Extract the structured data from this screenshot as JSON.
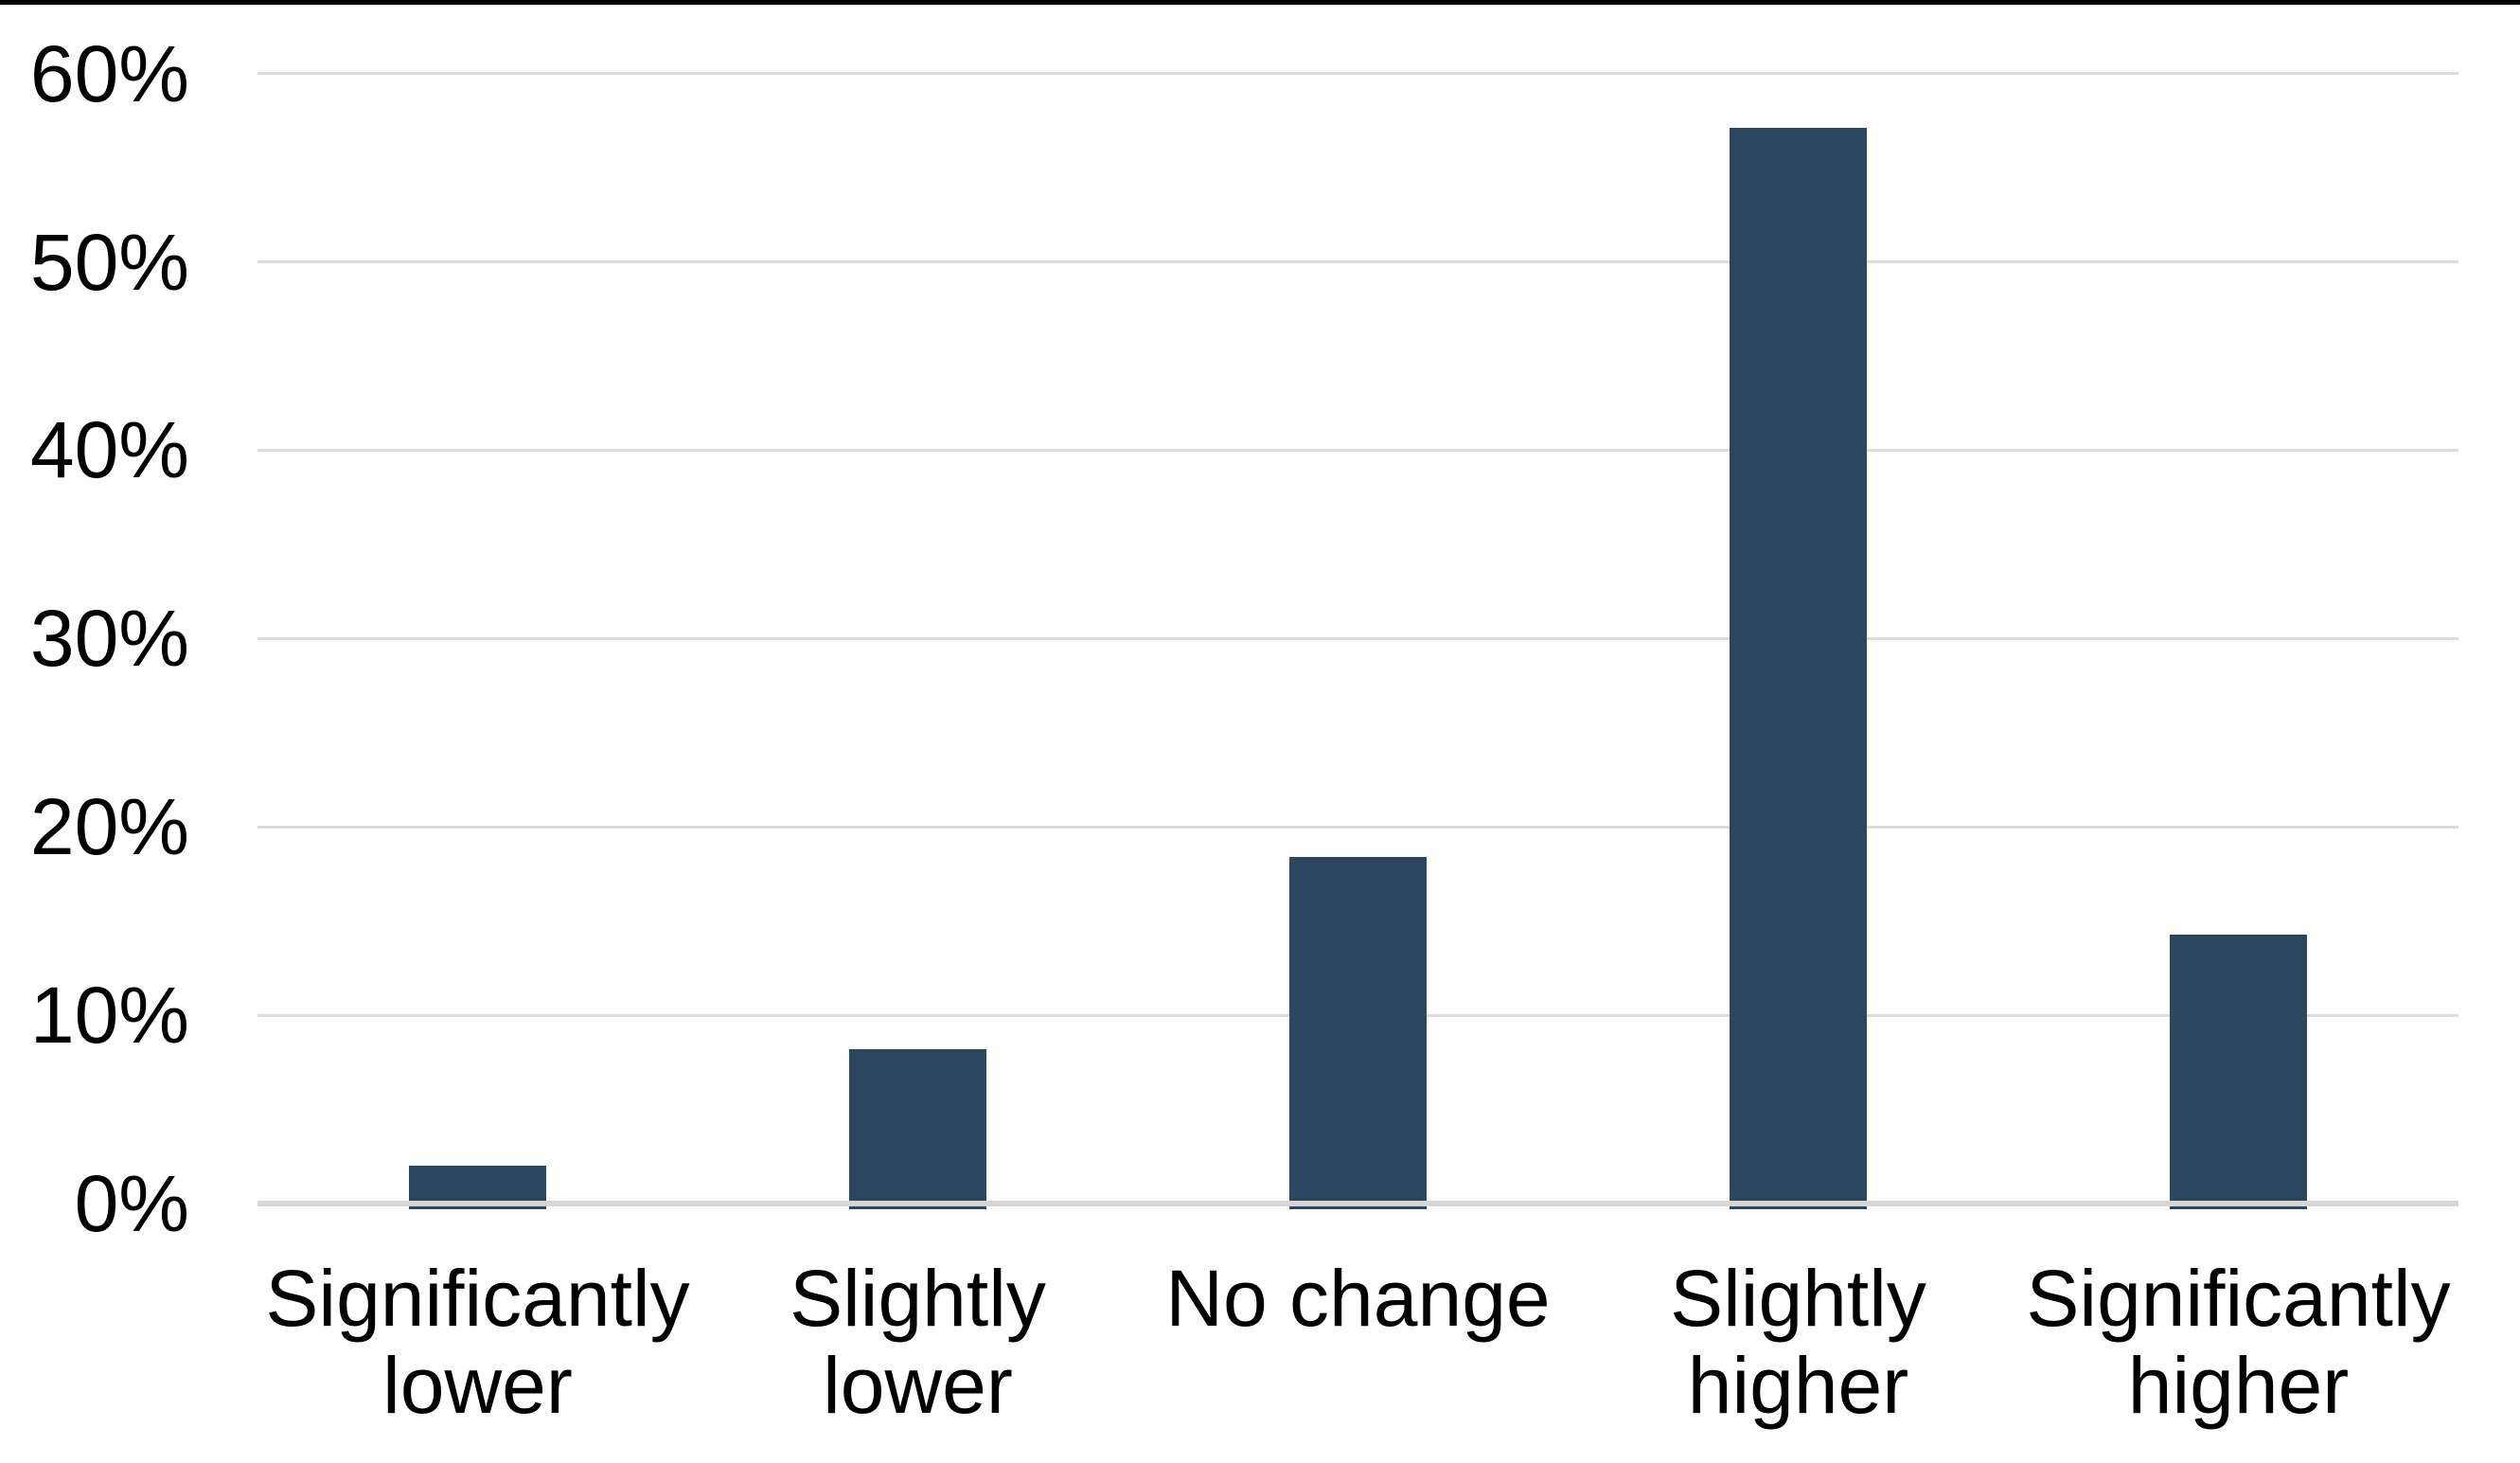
{
  "chart_data": {
    "type": "bar",
    "title": "",
    "xlabel": "",
    "ylabel": "",
    "categories": [
      "Significantly lower",
      "Slightly lower",
      "No change",
      "Slightly higher",
      "Significantly higher"
    ],
    "values": [
      2.0,
      8.2,
      18.4,
      57.1,
      14.3
    ],
    "ylim": [
      0,
      60
    ],
    "ytick_step": 10,
    "ytick_labels": [
      "0%",
      "10%",
      "20%",
      "30%",
      "40%",
      "50%",
      "60%"
    ],
    "grid": true,
    "legend_position": "none",
    "colors": {
      "bar": "#2d4760",
      "gridline": "#dcdcdc",
      "baseline": "#d6d6d6",
      "top_border": "#000000",
      "background": "#ffffff",
      "text": "#000000"
    }
  }
}
